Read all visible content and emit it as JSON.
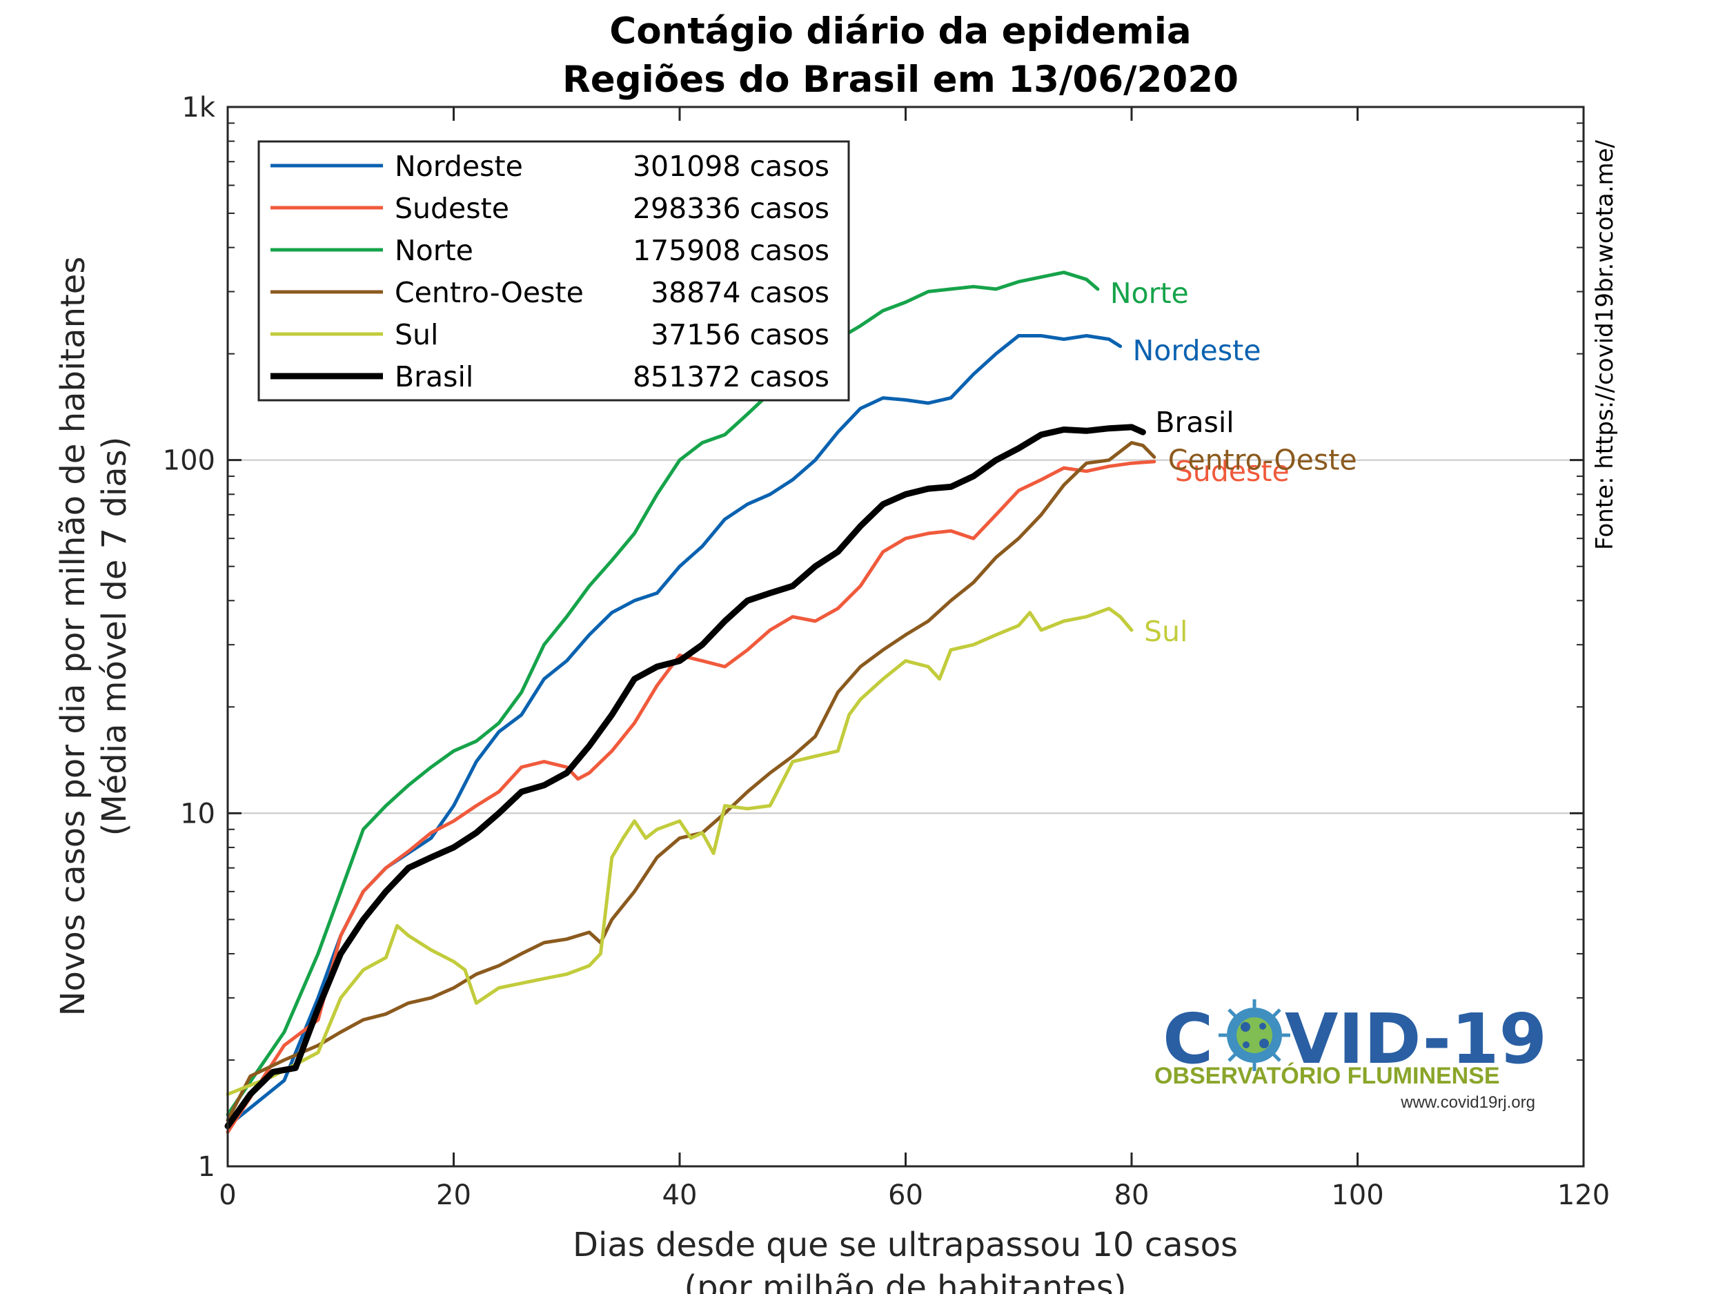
{
  "chart_data": {
    "type": "line",
    "title": "Contágio diário da epidemia",
    "subtitle": "Regiões do Brasil em 13/06/2020",
    "xlabel": [
      "Dias desde que se ultrapassou 10 casos",
      "(por milhão de habitantes)"
    ],
    "ylabel": [
      "Novos casos por dia por milhão de habitantes",
      "(Média móvel de 7 dias)"
    ],
    "y_scale": "log",
    "xlim": [
      0,
      120
    ],
    "ylim": [
      1,
      1000
    ],
    "x_ticks": [
      0,
      20,
      40,
      60,
      80,
      100,
      120
    ],
    "x_tick_labels": [
      "0",
      "20",
      "40",
      "60",
      "80",
      "100",
      "120"
    ],
    "y_ticks": [
      1,
      10,
      100,
      1000
    ],
    "y_tick_labels": [
      "1",
      "10",
      "100",
      "1k"
    ],
    "grid": "horizontal major lines",
    "legend_position": "top-left",
    "source": "Fonte: https://covid19br.wcota.me/",
    "series": [
      {
        "name": "Nordeste",
        "total": "301098 casos",
        "color": "#0a62b0",
        "end_label": "Nordeste",
        "x": [
          0,
          5,
          8,
          10,
          12,
          14,
          18,
          20,
          22,
          24,
          26,
          28,
          30,
          32,
          34,
          36,
          38,
          40,
          42,
          44,
          46,
          48,
          50,
          52,
          54,
          56,
          58,
          60,
          62,
          64,
          66,
          68,
          70,
          72,
          74,
          76,
          78,
          79
        ],
        "y": [
          1.3,
          1.75,
          3.0,
          4.5,
          6.0,
          7.0,
          8.5,
          10.5,
          14.0,
          17.0,
          19.0,
          24.0,
          27.0,
          32.0,
          37.0,
          40.0,
          42.0,
          50.0,
          57.0,
          68.0,
          75.0,
          80.0,
          88.0,
          100.0,
          120.0,
          140.0,
          150.0,
          148.0,
          145.0,
          150.0,
          175.0,
          200.0,
          225.0,
          225.0,
          220.0,
          225.0,
          220.0,
          210.0
        ]
      },
      {
        "name": "Sudeste",
        "total": "298336 casos",
        "color": "#f05a3c",
        "end_label": "Sudeste",
        "x": [
          0,
          5,
          8,
          10,
          12,
          14,
          16,
          18,
          20,
          22,
          24,
          26,
          28,
          30,
          31,
          32,
          34,
          36,
          38,
          40,
          42,
          44,
          46,
          48,
          50,
          52,
          54,
          56,
          58,
          60,
          62,
          64,
          66,
          68,
          70,
          72,
          74,
          76,
          78,
          80,
          82
        ],
        "y": [
          1.25,
          2.2,
          2.6,
          4.5,
          6.0,
          7.0,
          7.8,
          8.8,
          9.5,
          10.5,
          11.5,
          13.5,
          14.0,
          13.5,
          12.5,
          13.0,
          15.0,
          18.0,
          23.0,
          28.0,
          27.0,
          26.0,
          29.0,
          33.0,
          36.0,
          35.0,
          38.0,
          44.0,
          55.0,
          60.0,
          62.0,
          63.0,
          60.0,
          70.0,
          82.0,
          88.0,
          95.0,
          93.0,
          96.0,
          98.0,
          99.0
        ]
      },
      {
        "name": "Norte",
        "total": "175908 casos",
        "color": "#16a34a",
        "end_label": "Norte",
        "x": [
          0,
          5,
          8,
          10,
          12,
          14,
          16,
          18,
          20,
          22,
          24,
          26,
          28,
          30,
          32,
          34,
          36,
          38,
          40,
          42,
          44,
          46,
          48,
          50,
          52,
          54,
          56,
          58,
          60,
          62,
          64,
          66,
          68,
          70,
          72,
          74,
          76,
          77
        ],
        "y": [
          1.4,
          2.4,
          4.0,
          6.0,
          9.0,
          10.5,
          12.0,
          13.5,
          15.0,
          16.0,
          18.0,
          22.0,
          30.0,
          36.0,
          44.0,
          52.0,
          62.0,
          80.0,
          100.0,
          112.0,
          118.0,
          135.0,
          155.0,
          180.0,
          200.0,
          220.0,
          240.0,
          265.0,
          280.0,
          300.0,
          305.0,
          310.0,
          305.0,
          320.0,
          330.0,
          340.0,
          325.0,
          305.0
        ]
      },
      {
        "name": "Centro-Oeste",
        "total": "38874 casos",
        "color": "#8b5a1e",
        "end_label": "Centro-Oeste",
        "x": [
          0,
          2,
          5,
          8,
          10,
          12,
          14,
          16,
          18,
          20,
          22,
          24,
          26,
          28,
          30,
          32,
          33,
          34,
          36,
          38,
          40,
          42,
          44,
          46,
          48,
          50,
          52,
          54,
          56,
          58,
          60,
          62,
          64,
          66,
          68,
          70,
          72,
          74,
          76,
          78,
          80,
          81,
          82
        ],
        "y": [
          1.35,
          1.8,
          2.0,
          2.2,
          2.4,
          2.6,
          2.7,
          2.9,
          3.0,
          3.2,
          3.5,
          3.7,
          4.0,
          4.3,
          4.4,
          4.6,
          4.3,
          5.0,
          6.0,
          7.5,
          8.5,
          8.8,
          10.0,
          11.5,
          13.0,
          14.5,
          16.5,
          22.0,
          26.0,
          29.0,
          32.0,
          35.0,
          40.0,
          45.0,
          53.0,
          60.0,
          70.0,
          85.0,
          98.0,
          100.0,
          112.0,
          110.0,
          102.0
        ]
      },
      {
        "name": "Sul",
        "total": "37156 casos",
        "color": "#c2cc3c",
        "end_label": "Sul",
        "x": [
          0,
          4,
          8,
          10,
          12,
          14,
          15,
          16,
          18,
          20,
          21,
          22,
          24,
          26,
          28,
          30,
          32,
          33,
          34,
          35,
          36,
          37,
          38,
          40,
          41,
          42,
          43,
          44,
          46,
          48,
          50,
          52,
          54,
          55,
          56,
          58,
          60,
          62,
          63,
          64,
          66,
          68,
          70,
          71,
          72,
          74,
          76,
          78,
          79,
          80
        ],
        "y": [
          1.6,
          1.8,
          2.1,
          3.0,
          3.6,
          3.9,
          4.8,
          4.5,
          4.1,
          3.8,
          3.6,
          2.9,
          3.2,
          3.3,
          3.4,
          3.5,
          3.7,
          4.0,
          7.5,
          8.5,
          9.5,
          8.5,
          9.0,
          9.5,
          8.5,
          8.8,
          7.7,
          10.5,
          10.3,
          10.5,
          14.0,
          14.5,
          15.0,
          19.0,
          21.0,
          24.0,
          27.0,
          26.0,
          24.0,
          29.0,
          30.0,
          32.0,
          34.0,
          37.0,
          33.0,
          35.0,
          36.0,
          38.0,
          36.0,
          33.0
        ]
      },
      {
        "name": "Brasil",
        "total": "851372 casos",
        "color": "#000000",
        "end_label": "Brasil",
        "x": [
          0,
          2,
          4,
          6,
          8,
          10,
          12,
          14,
          16,
          18,
          20,
          22,
          24,
          26,
          28,
          30,
          32,
          34,
          36,
          38,
          40,
          42,
          44,
          46,
          48,
          50,
          52,
          54,
          56,
          58,
          60,
          62,
          64,
          66,
          68,
          70,
          72,
          74,
          76,
          78,
          80,
          81
        ],
        "y": [
          1.3,
          1.6,
          1.85,
          1.9,
          2.8,
          4.0,
          5.0,
          6.0,
          7.0,
          7.5,
          8.0,
          8.8,
          10.0,
          11.5,
          12.0,
          13.0,
          15.5,
          19.0,
          24.0,
          26.0,
          27.0,
          30.0,
          35.0,
          40.0,
          42.0,
          44.0,
          50.0,
          55.0,
          65.0,
          75.0,
          80.0,
          83.0,
          84.0,
          90.0,
          100.0,
          108.0,
          118.0,
          122.0,
          121.0,
          123.0,
          124.0,
          120.0
        ]
      }
    ]
  },
  "logo": {
    "main_prefix": "C",
    "main_suffix": "VID-19",
    "subtitle": "OBSERVATÓRIO FLUMINENSE",
    "url": "www.covid19rj.org"
  }
}
